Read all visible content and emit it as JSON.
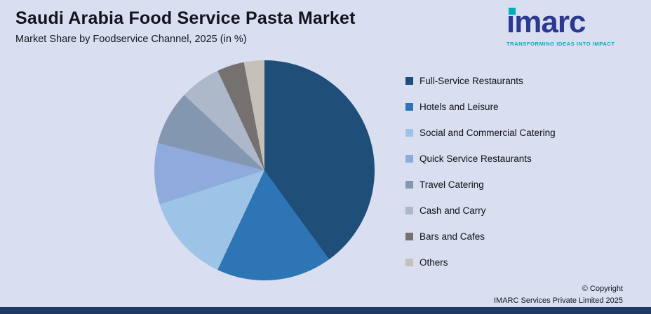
{
  "header": {
    "title": "Saudi Arabia Food Service Pasta Market",
    "subtitle": "Market Share by Foodservice Channel, 2025 (in %)"
  },
  "logo": {
    "brand": "imarc",
    "tagline": "TRANSFORMING IDEAS INTO IMPACT",
    "brand_color": "#2b3990",
    "accent_color": "#00aebc"
  },
  "chart_data": {
    "type": "pie",
    "title": "Saudi Arabia Food Service Pasta Market",
    "subtitle": "Market Share by Foodservice Channel, 2025 (in %)",
    "legend_position": "right",
    "start_angle_deg": 0,
    "direction": "clockwise",
    "categories": [
      "Full-Service Restaurants",
      "Hotels and Leisure",
      "Social and Commercial Catering",
      "Quick Service Restaurants",
      "Travel Catering",
      "Cash and Carry",
      "Bars and Cafes",
      "Others"
    ],
    "values": [
      40,
      17,
      13,
      9,
      8,
      6,
      4,
      3
    ],
    "colors": [
      "#1f4e79",
      "#2e75b6",
      "#9dc3e6",
      "#8faadc",
      "#8497b0",
      "#adb9ca",
      "#767171",
      "#c6c1b8"
    ]
  },
  "footer": {
    "copyright_line1": "© Copyright",
    "copyright_line2": "IMARC Services Private Limited 2025"
  },
  "colors": {
    "background": "#d9def1",
    "bottom_bar": "#203864"
  }
}
